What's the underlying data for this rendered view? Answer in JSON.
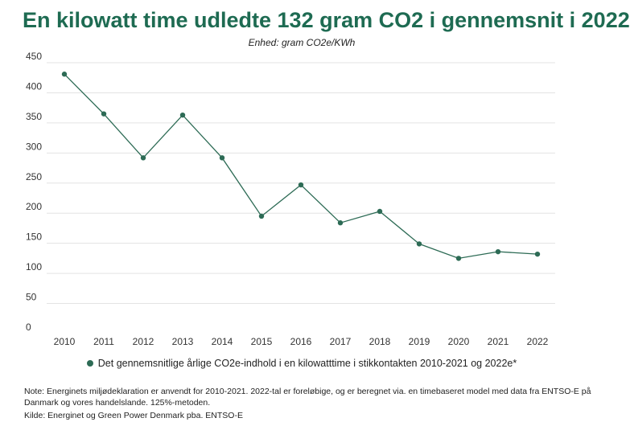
{
  "title": "En kilowatt time udledte 132 gram CO2 i gennemsnit i 2022",
  "subtitle": "Enhed: gram CO2e/KWh",
  "note": "Note: Energinets miljødeklaration er anvendt for 2010-2021. 2022-tal er foreløbige, og er beregnet via. en timebaseret model med data fra ENTSO-E på Danmark og vores handelslande. 125%-metoden.",
  "source": "Kilde: Energinet og Green Power Denmark pba. ENTSO-E",
  "colors": {
    "line": "#2d6b55",
    "title": "#1e6b52",
    "grid": "#e3e3e3"
  },
  "chart_data": {
    "type": "line",
    "x": [
      "2010",
      "2011",
      "2012",
      "2013",
      "2014",
      "2015",
      "2016",
      "2017",
      "2018",
      "2019",
      "2020",
      "2021",
      "2022"
    ],
    "series": [
      {
        "name": "Det gennemsnitlige årlige CO2e-indhold i en kilowatttime i stikkontakten 2010-2021 og 2022e*",
        "values": [
          431,
          365,
          292,
          363,
          292,
          195,
          247,
          184,
          203,
          149,
          125,
          136,
          132
        ]
      }
    ],
    "ylim": [
      0,
      450
    ],
    "yticks": [
      0,
      50,
      100,
      150,
      200,
      250,
      300,
      350,
      400,
      450
    ],
    "grid": true,
    "legend": "bottom"
  }
}
